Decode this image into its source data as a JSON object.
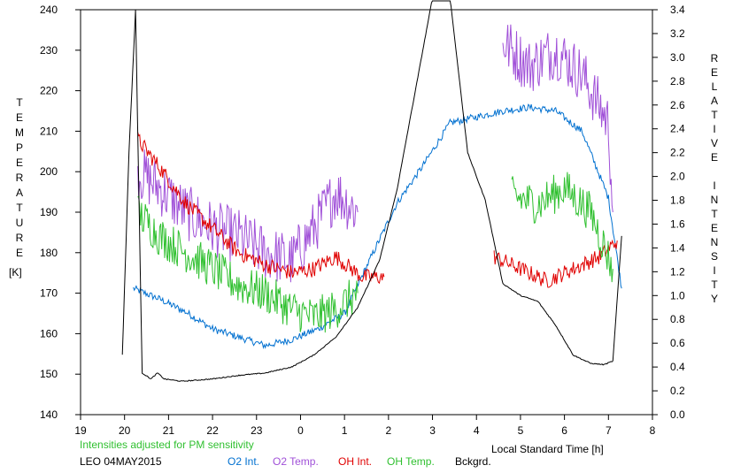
{
  "chart_data": {
    "type": "line",
    "left_axis_label_letters": [
      "T",
      "E",
      "M",
      "P",
      "E",
      "R",
      "A",
      "T",
      "U",
      "R",
      "E"
    ],
    "left_axis_unit": "[K]",
    "right_axis_label_letters": [
      "R",
      "E",
      "L",
      "A",
      "T",
      "I",
      "V",
      "E",
      "",
      "I",
      "N",
      "T",
      "E",
      "N",
      "S",
      "I",
      "T",
      "Y"
    ],
    "xlabel": "Local Standard Time [h]",
    "annotation_top": "Intensities adjusted for PM sensitivity",
    "station_date": "LEO 04MAY2015",
    "x_ticks": [
      "19",
      "20",
      "21",
      "22",
      "23",
      "0",
      "1",
      "2",
      "3",
      "4",
      "5",
      "6",
      "7",
      "8"
    ],
    "xlim": [
      19,
      32
    ],
    "y_left_ticks": [
      "140",
      "150",
      "160",
      "170",
      "180",
      "190",
      "200",
      "210",
      "220",
      "230",
      "240"
    ],
    "ylim_left": [
      140,
      240
    ],
    "y_right_ticks": [
      "0.0",
      "0.2",
      "0.4",
      "0.6",
      "0.8",
      "1.0",
      "1.2",
      "1.4",
      "1.6",
      "1.8",
      "2.0",
      "2.2",
      "2.4",
      "2.6",
      "2.8",
      "3.0",
      "3.2",
      "3.4"
    ],
    "ylim_right": [
      0,
      3.4
    ],
    "legend": [
      {
        "name": "O2 Int.",
        "color": "#0070d0"
      },
      {
        "name": "O2 Temp.",
        "color": "#a050d8"
      },
      {
        "name": "OH Int.",
        "color": "#e00000"
      },
      {
        "name": "OH Temp.",
        "color": "#30c030"
      },
      {
        "name": "Bckgrd.",
        "color": "#000000"
      }
    ],
    "annotation_color": "#30c030",
    "series": [
      {
        "name": "O2 Int.",
        "color": "#0070d0",
        "axis": "right",
        "noise": 0.03,
        "x": [
          20.2,
          20.8,
          21.4,
          22.0,
          22.6,
          23.2,
          23.8,
          24.4,
          25.0,
          25.6,
          26.2,
          26.8,
          27.4,
          28.0,
          28.6,
          29.2,
          29.8,
          30.4,
          31.0,
          31.3
        ],
        "y": [
          1.06,
          0.97,
          0.86,
          0.72,
          0.65,
          0.58,
          0.63,
          0.72,
          0.85,
          1.32,
          1.78,
          2.1,
          2.45,
          2.5,
          2.55,
          2.58,
          2.55,
          2.38,
          1.82,
          1.06
        ]
      },
      {
        "name": "O2 Temp.",
        "color": "#a050d8",
        "axis": "left",
        "noise": 7,
        "x": [
          20.3,
          20.8,
          21.4,
          22.0,
          22.6,
          23.2,
          23.8,
          24.3,
          24.8,
          25.3,
          28.6,
          29.2,
          29.8,
          30.4,
          31.0,
          31.1
        ],
        "y": [
          200,
          196,
          190,
          186,
          184,
          180,
          178,
          186,
          195,
          190,
          232,
          226,
          230,
          224,
          212,
          190
        ]
      },
      {
        "name": "OH Int.",
        "color": "#e00000",
        "axis": "left",
        "noise": 2,
        "x": [
          20.3,
          20.8,
          21.4,
          22.0,
          22.6,
          23.2,
          23.8,
          24.3,
          24.8,
          25.4,
          25.9,
          28.4,
          29.0,
          29.6,
          30.2,
          30.8,
          31.2
        ],
        "y": [
          208,
          201,
          192,
          186,
          180,
          177,
          175,
          176,
          179,
          174,
          174,
          179,
          176,
          173,
          176,
          179,
          183
        ]
      },
      {
        "name": "OH Temp.",
        "color": "#30c030",
        "axis": "left",
        "noise": 5,
        "x": [
          20.3,
          20.8,
          21.4,
          22.0,
          22.6,
          23.2,
          23.8,
          24.3,
          24.8,
          25.3,
          28.8,
          29.4,
          30.0,
          30.6,
          31.1
        ],
        "y": [
          190,
          184,
          180,
          176,
          172,
          170,
          166,
          164,
          166,
          170,
          194,
          192,
          196,
          190,
          176
        ]
      },
      {
        "name": "Bckgrd.",
        "color": "#000000",
        "axis": "right",
        "noise": 0.004,
        "x": [
          19.95,
          20.1,
          20.25,
          20.4,
          20.6,
          20.75,
          20.9,
          21.3,
          22.0,
          22.6,
          23.2,
          23.8,
          24.3,
          24.8,
          25.3,
          25.8,
          26.2,
          26.6,
          27.0,
          27.4,
          27.8,
          28.2,
          28.6,
          29.0,
          29.4,
          29.8,
          30.2,
          30.6,
          30.9,
          31.1,
          31.3
        ],
        "y": [
          0.5,
          2.2,
          3.4,
          0.35,
          0.3,
          0.35,
          0.3,
          0.28,
          0.3,
          0.33,
          0.35,
          0.4,
          0.5,
          0.65,
          0.9,
          1.3,
          1.9,
          2.7,
          3.5,
          3.5,
          2.2,
          1.8,
          1.1,
          1.0,
          0.95,
          0.75,
          0.5,
          0.43,
          0.42,
          0.45,
          1.5
        ]
      }
    ]
  }
}
